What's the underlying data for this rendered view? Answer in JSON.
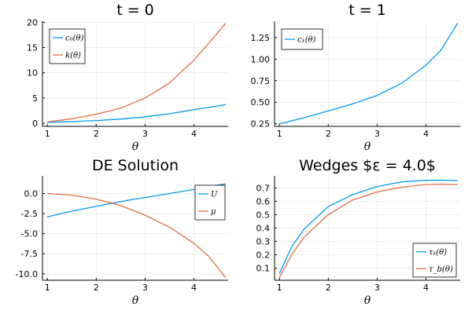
{
  "chart_data": [
    {
      "type": "line",
      "title": "t = 0",
      "xlabel": "θ",
      "ylabel": "",
      "xlim": [
        0.9,
        4.7
      ],
      "ylim": [
        -0.6,
        20.2
      ],
      "xticks": [
        1,
        2,
        3,
        4
      ],
      "yticks": [
        0,
        5,
        10,
        15,
        20
      ],
      "ytick_labels": [
        "0",
        "5",
        "10",
        "15",
        "20"
      ],
      "legend_position": "top-left",
      "series": [
        {
          "name": "c₀(θ)",
          "color": "#009af9",
          "x": [
            1.0,
            1.5,
            2.0,
            2.5,
            3.0,
            3.5,
            4.0,
            4.65
          ],
          "y": [
            0.2,
            0.35,
            0.55,
            0.85,
            1.3,
            1.9,
            2.7,
            3.7
          ]
        },
        {
          "name": "k(θ)",
          "color": "#e26f46",
          "x": [
            1.0,
            1.5,
            2.0,
            2.5,
            3.0,
            3.5,
            4.0,
            4.3,
            4.65
          ],
          "y": [
            0.3,
            0.9,
            1.8,
            3.0,
            5.0,
            8.0,
            12.5,
            15.8,
            19.8
          ]
        }
      ]
    },
    {
      "type": "line",
      "title": "t = 1",
      "xlabel": "θ",
      "ylabel": "",
      "xlim": [
        0.9,
        4.7
      ],
      "ylim": [
        0.22,
        1.44
      ],
      "xticks": [
        1,
        2,
        3,
        4
      ],
      "yticks": [
        0.25,
        0.5,
        0.75,
        1.0,
        1.25
      ],
      "ytick_labels": [
        "0.25",
        "0.50",
        "0.75",
        "1.00",
        "1.25"
      ],
      "legend_position": "top-left",
      "series": [
        {
          "name": "c₁(θ)",
          "color": "#009af9",
          "x": [
            1.0,
            1.5,
            2.0,
            2.5,
            3.0,
            3.5,
            4.0,
            4.3,
            4.65
          ],
          "y": [
            0.25,
            0.32,
            0.4,
            0.48,
            0.58,
            0.72,
            0.93,
            1.1,
            1.42
          ]
        }
      ]
    },
    {
      "type": "line",
      "title": "DE Solution",
      "xlabel": "θ",
      "ylabel": "",
      "xlim": [
        0.9,
        4.7
      ],
      "ylim": [
        -10.8,
        2.2
      ],
      "xticks": [
        1,
        2,
        3,
        4
      ],
      "yticks": [
        0,
        -2.5,
        -5,
        -7.5,
        -10
      ],
      "ytick_labels": [
        "0.0",
        "-2.5",
        "-5.0",
        "-7.5",
        "-10.0"
      ],
      "legend_position": "top-right",
      "series": [
        {
          "name": "U",
          "color": "#009af9",
          "x": [
            1.0,
            1.5,
            2.0,
            2.5,
            3.0,
            3.5,
            4.0,
            4.3,
            4.65
          ],
          "y": [
            -2.9,
            -2.2,
            -1.6,
            -1.0,
            -0.5,
            0.0,
            0.5,
            0.85,
            1.2
          ]
        },
        {
          "name": "μ",
          "color": "#e26f46",
          "x": [
            1.0,
            1.5,
            2.0,
            2.5,
            3.0,
            3.5,
            4.0,
            4.3,
            4.65
          ],
          "y": [
            0.0,
            -0.2,
            -0.7,
            -1.5,
            -2.7,
            -4.2,
            -6.2,
            -7.8,
            -10.5
          ]
        }
      ]
    },
    {
      "type": "line",
      "title": "Wedges $ε = 4.0$",
      "xlabel": "θ",
      "ylabel": "",
      "xlim": [
        0.9,
        4.7
      ],
      "ylim": [
        0.01,
        0.79
      ],
      "xticks": [
        1,
        2,
        3,
        4
      ],
      "yticks": [
        0.1,
        0.2,
        0.3,
        0.4,
        0.5,
        0.6,
        0.7
      ],
      "ytick_labels": [
        "0.1",
        "0.2",
        "0.3",
        "0.4",
        "0.5",
        "0.6",
        "0.7"
      ],
      "legend_position": "bottom-right",
      "series": [
        {
          "name": "τₖ(θ)",
          "color": "#009af9",
          "x": [
            1.0,
            1.25,
            1.5,
            2.0,
            2.5,
            3.0,
            3.5,
            4.0,
            4.3,
            4.65
          ],
          "y": [
            0.06,
            0.26,
            0.39,
            0.56,
            0.65,
            0.71,
            0.745,
            0.757,
            0.758,
            0.755
          ]
        },
        {
          "name": "τ_b(θ)",
          "color": "#e26f46",
          "x": [
            1.0,
            1.25,
            1.5,
            2.0,
            2.5,
            3.0,
            3.5,
            4.0,
            4.3,
            4.65
          ],
          "y": [
            0.03,
            0.2,
            0.33,
            0.5,
            0.61,
            0.67,
            0.705,
            0.725,
            0.728,
            0.725
          ]
        }
      ]
    }
  ]
}
